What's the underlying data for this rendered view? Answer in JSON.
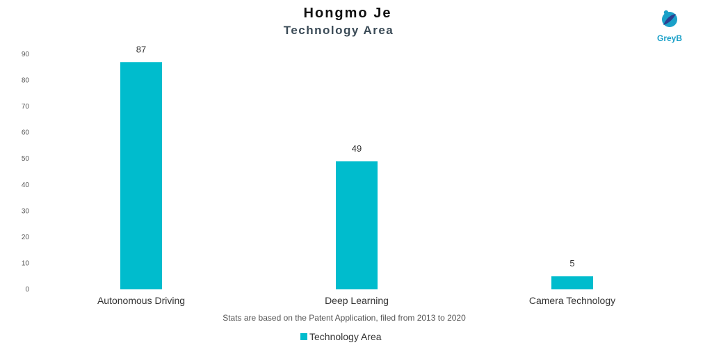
{
  "logo": {
    "text": "GreyB",
    "color": "#1aa0c8"
  },
  "note": "Stats are based on the Patent Application, filed from 2013 to 2020",
  "chart_data": {
    "type": "bar",
    "title": "Hongmo Je",
    "subtitle": "Technology Area",
    "categories": [
      "Autonomous Driving",
      "Deep Learning",
      "Camera Technology"
    ],
    "series": [
      {
        "name": "Technology Area",
        "values": [
          87,
          49,
          5
        ],
        "color": "#00bccd"
      }
    ],
    "xlabel": "",
    "ylabel": "",
    "ylim": [
      0,
      90
    ],
    "yticks": [
      0,
      10,
      20,
      30,
      40,
      50,
      60,
      70,
      80,
      90
    ],
    "grid": false,
    "legend": "bottom-center"
  }
}
